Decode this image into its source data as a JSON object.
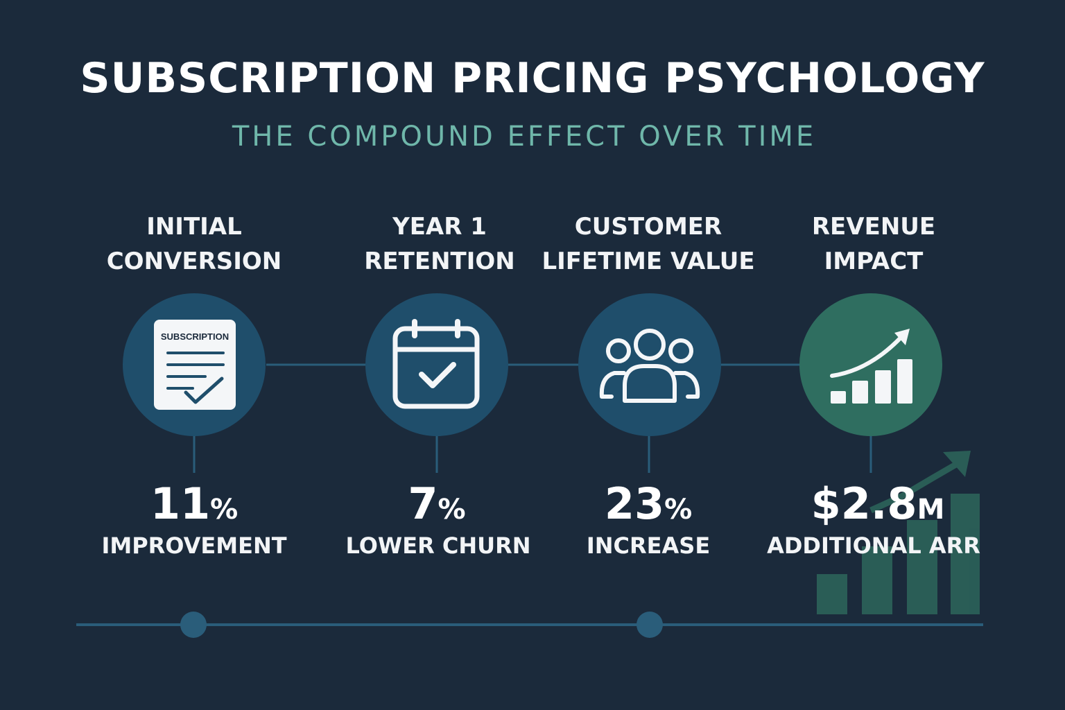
{
  "title": "SUBSCRIPTION PRICING PSYCHOLOGY",
  "subtitle": "THE COMPOUND EFFECT OVER TIME",
  "colors": {
    "background": "#1b2a3b",
    "subtitle": "#6fb7aa",
    "stage_circle_blue": "#1f4e6b",
    "stage_circle_green": "#2f6e60",
    "connector": "#2a5d7a",
    "deco_bars": "#2f6e60"
  },
  "stages": [
    {
      "title_lines": [
        "INITIAL",
        "CONVERSION"
      ],
      "icon": "subscription-document-icon",
      "icon_text": "SUBSCRIPTION",
      "value": "11",
      "unit": "%",
      "label": "IMPROVEMENT"
    },
    {
      "title_lines": [
        "YEAR 1",
        "RETENTION"
      ],
      "icon": "calendar-check-icon",
      "value": "7",
      "unit": "%",
      "label": "LOWER CHURN"
    },
    {
      "title_lines": [
        "CUSTOMER",
        "LIFETIME VALUE"
      ],
      "icon": "users-group-icon",
      "value": "23",
      "unit": "%",
      "label": "INCREASE"
    },
    {
      "title_lines": [
        "REVENUE",
        "IMPACT"
      ],
      "icon": "growth-chart-icon",
      "value": "$2.8",
      "unit": "M",
      "label": "ADDITIONAL ARR"
    }
  ]
}
